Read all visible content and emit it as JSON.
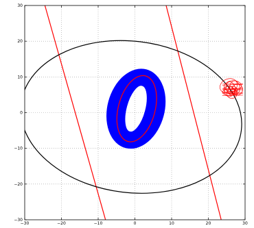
{
  "chart_data": {
    "type": "line",
    "title": "",
    "xlabel": "",
    "ylabel": "",
    "xlim": [
      -30,
      30
    ],
    "ylim": [
      -30,
      30
    ],
    "grid": true,
    "x_ticks": [
      "−30",
      "−20",
      "−10",
      "0",
      "10",
      "20",
      "30"
    ],
    "y_ticks": [
      "30",
      "20",
      "10",
      "0",
      "−10",
      "−20",
      "−30"
    ],
    "x_tick_values": [
      -30,
      -20,
      -10,
      0,
      10,
      20,
      30
    ],
    "y_tick_values": [
      30,
      20,
      10,
      0,
      -10,
      -20,
      -30
    ],
    "series": [
      {
        "kind": "line",
        "color": "#ff0000",
        "x": [
          -24.5,
          -8.0
        ],
        "y": [
          30,
          -30
        ]
      },
      {
        "kind": "line",
        "color": "#ff0000",
        "x": [
          8.5,
          23.5
        ],
        "y": [
          30,
          -30
        ]
      },
      {
        "kind": "ellipse",
        "color": "#000000",
        "center": [
          -1.0,
          -1.2
        ],
        "rx": 30.2,
        "ry": 21.2,
        "rotation_deg": -7
      },
      {
        "kind": "filled_ring",
        "color": "#0000ff",
        "center": [
          0.3,
          1.1
        ],
        "outer_rx": 7.6,
        "outer_ry": 11.2,
        "inner_rx": 2.7,
        "inner_ry": 6.8,
        "rotation_deg": -15
      },
      {
        "kind": "ellipse",
        "color": "#ff0000",
        "center": [
          0.5,
          1.1
        ],
        "rx": 5.0,
        "ry": 9.5,
        "rotation_deg": -15
      },
      {
        "kind": "scribble_cluster",
        "color": "#ff0000",
        "center": [
          26.6,
          6.4
        ],
        "width": 5.6,
        "height": 4.0
      }
    ]
  }
}
